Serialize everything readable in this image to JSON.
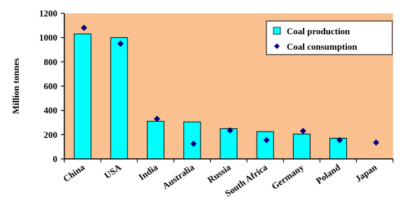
{
  "chart_data": {
    "type": "bar",
    "categories": [
      "China",
      "USA",
      "India",
      "Australia",
      "Russia",
      "South Africa",
      "Germany",
      "Poland",
      "Japan"
    ],
    "series": [
      {
        "name": "Coal production",
        "kind": "bar",
        "values": [
          1030,
          1000,
          310,
          305,
          250,
          225,
          205,
          170,
          0
        ]
      },
      {
        "name": "Coal consumption",
        "kind": "marker",
        "values": [
          1080,
          950,
          330,
          125,
          235,
          155,
          230,
          155,
          135
        ]
      }
    ],
    "ylabel": "Million tonnes",
    "ylim": [
      0,
      1200
    ],
    "yticks": [
      0,
      200,
      400,
      600,
      800,
      1000,
      1200
    ],
    "legend_position": "top-right",
    "colors": {
      "plot_background": "#FAC090",
      "bar_fill": "#00FFFF",
      "marker": "#000080",
      "axis": "#000000"
    }
  }
}
